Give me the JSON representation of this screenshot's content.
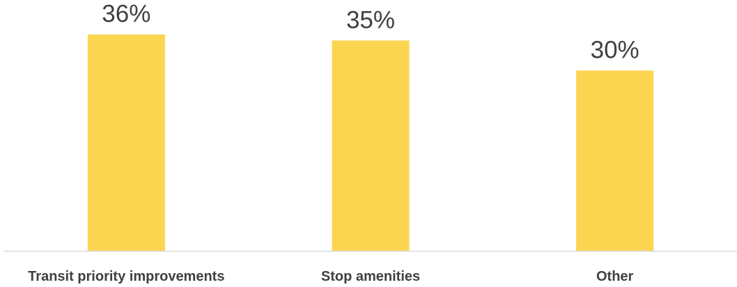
{
  "chart_data": {
    "type": "bar",
    "title": "",
    "xlabel": "",
    "ylabel": "",
    "categories": [
      "Transit priority improvements",
      "Stop amenities",
      "Other"
    ],
    "values": [
      36,
      35,
      30
    ],
    "value_labels": [
      "36%",
      "35%",
      "30%"
    ],
    "ylim": [
      0,
      40
    ],
    "grid": false,
    "legend": "none",
    "bar_color": "#FCD550",
    "axis_color": "#D9D9D9",
    "text_color": "#404040"
  }
}
